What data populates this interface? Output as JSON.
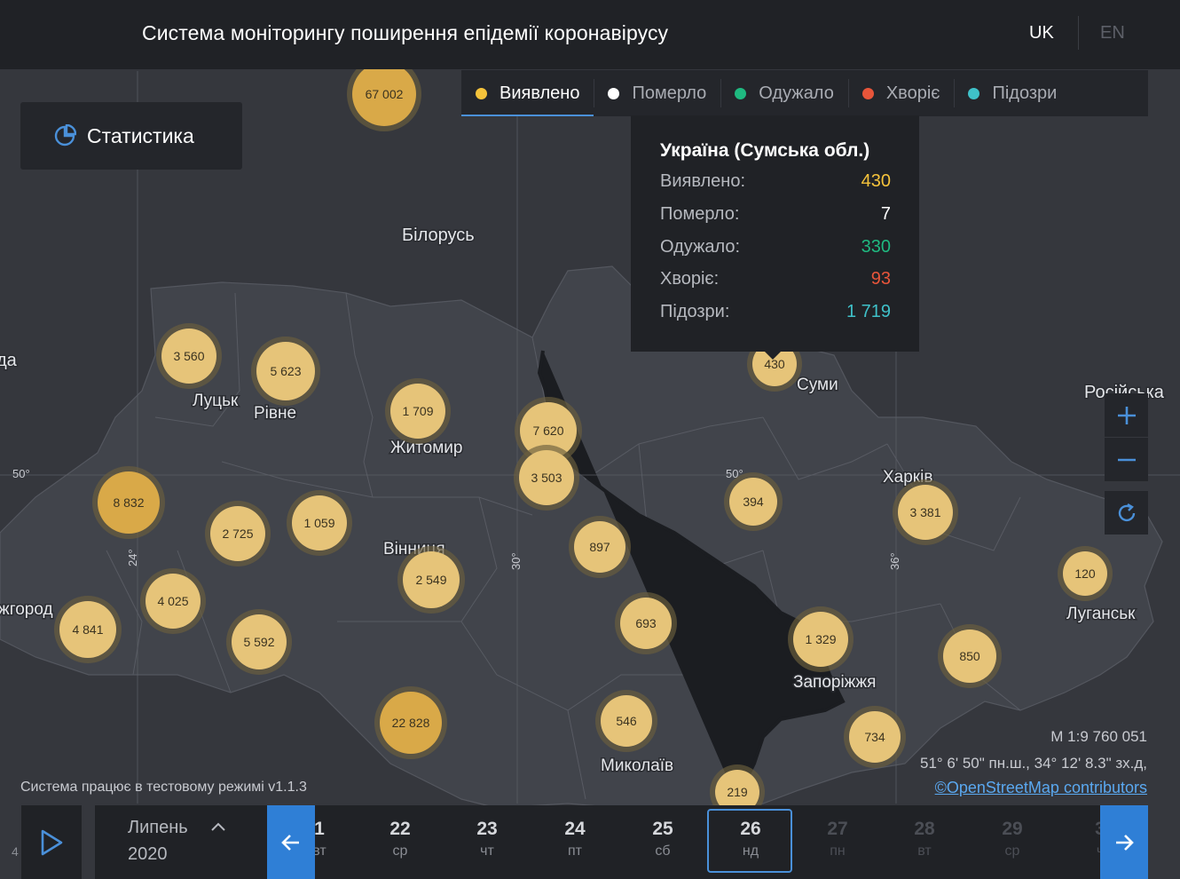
{
  "header": {
    "title": "Система моніторингу поширення епідемії коронавірусу",
    "lang_uk": "UK",
    "lang_en": "EN"
  },
  "stats_button": {
    "label": "Статистика",
    "icon": "pie-chart-icon"
  },
  "filters": [
    {
      "label": "Виявлено",
      "color": "#f5c33b",
      "active": true
    },
    {
      "label": "Померло",
      "color": "#ffffff",
      "active": false
    },
    {
      "label": "Одужало",
      "color": "#1fb980",
      "active": false
    },
    {
      "label": "Хворіє",
      "color": "#e8553a",
      "active": false
    },
    {
      "label": "Підозри",
      "color": "#3fc1c9",
      "active": false
    }
  ],
  "tooltip": {
    "title": "Україна (Сумська обл.)",
    "rows": [
      {
        "label": "Виявлено:",
        "value": "430",
        "color": "#f5c33b"
      },
      {
        "label": "Померло:",
        "value": "7",
        "color": "#ffffff"
      },
      {
        "label": "Одужало:",
        "value": "330",
        "color": "#1fb980"
      },
      {
        "label": "Хворіє:",
        "value": "93",
        "color": "#e8553a"
      },
      {
        "label": "Підозри:",
        "value": "1 719",
        "color": "#3fc1c9"
      }
    ]
  },
  "map": {
    "place_labels": [
      "Білорусь",
      "Луцьк",
      "Рівне",
      "Житомир",
      "Суми",
      "Харків",
      "Вінниця",
      "Луганськ",
      "Запоріжжя",
      "Миколаїв",
      "Російська",
      "жгород",
      "да"
    ],
    "graticule_labels": [
      "50°",
      "50°",
      "24°",
      "30°",
      "36°"
    ],
    "clusters": [
      "67 002",
      "3 560",
      "5 623",
      "1 709",
      "7 620",
      "3 503",
      "430",
      "394",
      "3 381",
      "8 832",
      "2 725",
      "1 059",
      "2 549",
      "897",
      "120",
      "4 025",
      "4 841",
      "5 592",
      "693",
      "1 329",
      "850",
      "22 828",
      "546",
      "734",
      "219"
    ]
  },
  "zoom": {
    "in_icon": "plus-icon",
    "out_icon": "minus-icon",
    "reset_icon": "refresh-icon"
  },
  "info": {
    "scale": "М 1:9 760 051",
    "coords": "51° 6' 50\" пн.ш., 34° 12' 8.3\" зх.д,",
    "osm": "©OpenStreetMap contributors",
    "test_mode": "Система працює в тестовому режимі v1.1.3"
  },
  "timeline": {
    "month": "Липень",
    "year": "2020",
    "left_digit": "4",
    "days": [
      {
        "d": "1",
        "w": "вт",
        "state": "past"
      },
      {
        "d": "22",
        "w": "ср",
        "state": "past"
      },
      {
        "d": "23",
        "w": "чт",
        "state": "past"
      },
      {
        "d": "24",
        "w": "пт",
        "state": "past"
      },
      {
        "d": "25",
        "w": "сб",
        "state": "past"
      },
      {
        "d": "26",
        "w": "нд",
        "state": "selected"
      },
      {
        "d": "27",
        "w": "пн",
        "state": "future"
      },
      {
        "d": "28",
        "w": "вт",
        "state": "future"
      },
      {
        "d": "29",
        "w": "ср",
        "state": "future"
      },
      {
        "d": "3",
        "w": "ч",
        "state": "future"
      }
    ]
  }
}
